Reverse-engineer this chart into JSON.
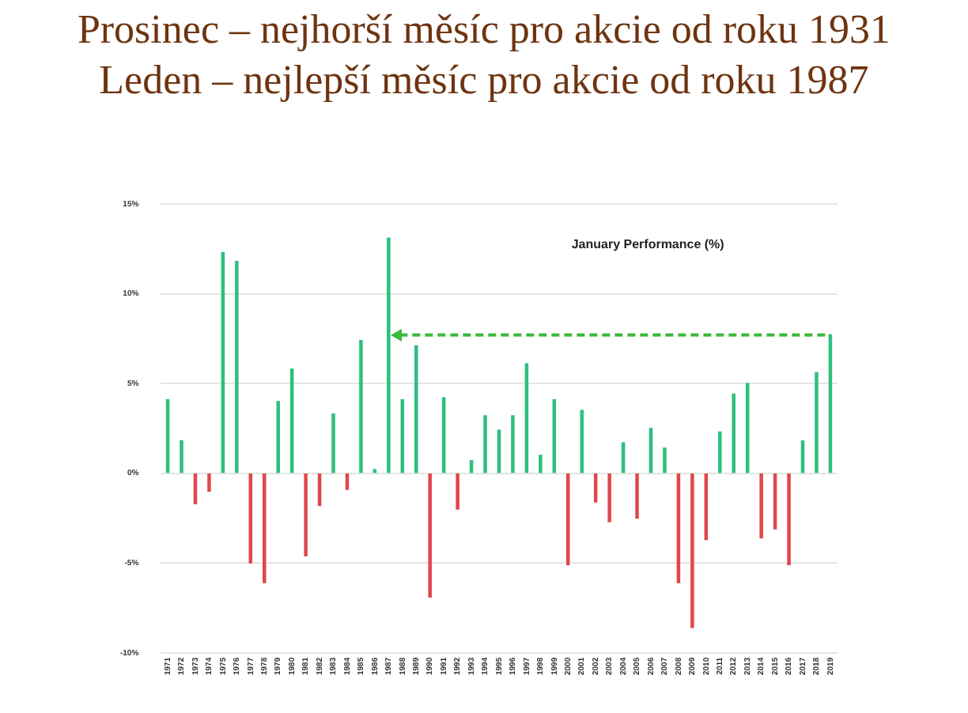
{
  "chart_data": {
    "type": "bar",
    "title": "Prosinec – nejhorší měsíc pro akcie od roku 1931",
    "subtitle": "Leden – nejlepší měsíc pro akcie od roku 1987",
    "annotations": [
      "January Performance (%)"
    ],
    "categories": [
      "1971",
      "1972",
      "1973",
      "1974",
      "1975",
      "1976",
      "1977",
      "1978",
      "1979",
      "1980",
      "1981",
      "1982",
      "1983",
      "1984",
      "1985",
      "1986",
      "1987",
      "1988",
      "1989",
      "1990",
      "1991",
      "1992",
      "1993",
      "1994",
      "1995",
      "1996",
      "1997",
      "1998",
      "1999",
      "2000",
      "2001",
      "2002",
      "2003",
      "2004",
      "2005",
      "2006",
      "2007",
      "2008",
      "2009",
      "2010",
      "2011",
      "2012",
      "2013",
      "2014",
      "2015",
      "2016",
      "2017",
      "2018",
      "2019"
    ],
    "values": [
      4.1,
      1.8,
      -1.7,
      -1.0,
      12.3,
      11.8,
      -5.0,
      -6.1,
      4.0,
      5.8,
      -4.6,
      -1.8,
      3.3,
      -0.9,
      7.4,
      0.2,
      13.1,
      4.1,
      7.1,
      -6.9,
      4.2,
      -2.0,
      0.7,
      3.2,
      2.4,
      3.2,
      6.1,
      1.0,
      4.1,
      -5.1,
      3.5,
      -1.6,
      -2.7,
      1.7,
      -2.5,
      2.5,
      1.4,
      -6.1,
      -8.6,
      -3.7,
      2.3,
      4.4,
      5.0,
      -3.6,
      -3.1,
      -5.1,
      1.8,
      5.6,
      7.7
    ],
    "colors": [
      "#2dbf7e",
      "#2dbf7e",
      "#e0474c",
      "#e0474c",
      "#2dbf7e",
      "#2dbf7e",
      "#e0474c",
      "#e0474c",
      "#2dbf7e",
      "#2dbf7e",
      "#e0474c",
      "#e0474c",
      "#2dbf7e",
      "#e0474c",
      "#2dbf7e",
      "#2dbf7e",
      "#2dbf7e",
      "#2dbf7e",
      "#2dbf7e",
      "#e0474c",
      "#2dbf7e",
      "#e0474c",
      "#2dbf7e",
      "#2dbf7e",
      "#2dbf7e",
      "#2dbf7e",
      "#2dbf7e",
      "#2dbf7e",
      "#2dbf7e",
      "#e0474c",
      "#2dbf7e",
      "#e0474c",
      "#e0474c",
      "#2dbf7e",
      "#e0474c",
      "#2dbf7e",
      "#2dbf7e",
      "#e0474c",
      "#e0474c",
      "#e0474c",
      "#2dbf7e",
      "#2dbf7e",
      "#2dbf7e",
      "#e0474c",
      "#e0474c",
      "#e0474c",
      "#2dbf7e",
      "#2dbf7e",
      "#2dbf7e"
    ],
    "ylim": [
      -10,
      15
    ],
    "yticks": [
      {
        "value": -10,
        "label": "-10%"
      },
      {
        "value": -5,
        "label": "-5%"
      },
      {
        "value": 0,
        "label": "0%"
      },
      {
        "value": 5,
        "label": "5%"
      },
      {
        "value": 10,
        "label": "10%"
      },
      {
        "value": 15,
        "label": "15%"
      }
    ],
    "ref_lines": [
      {
        "axis": "y",
        "value": 7.7,
        "color": "#3cb83c",
        "line_style": "dashed"
      }
    ],
    "grid": "y",
    "legend": false
  }
}
